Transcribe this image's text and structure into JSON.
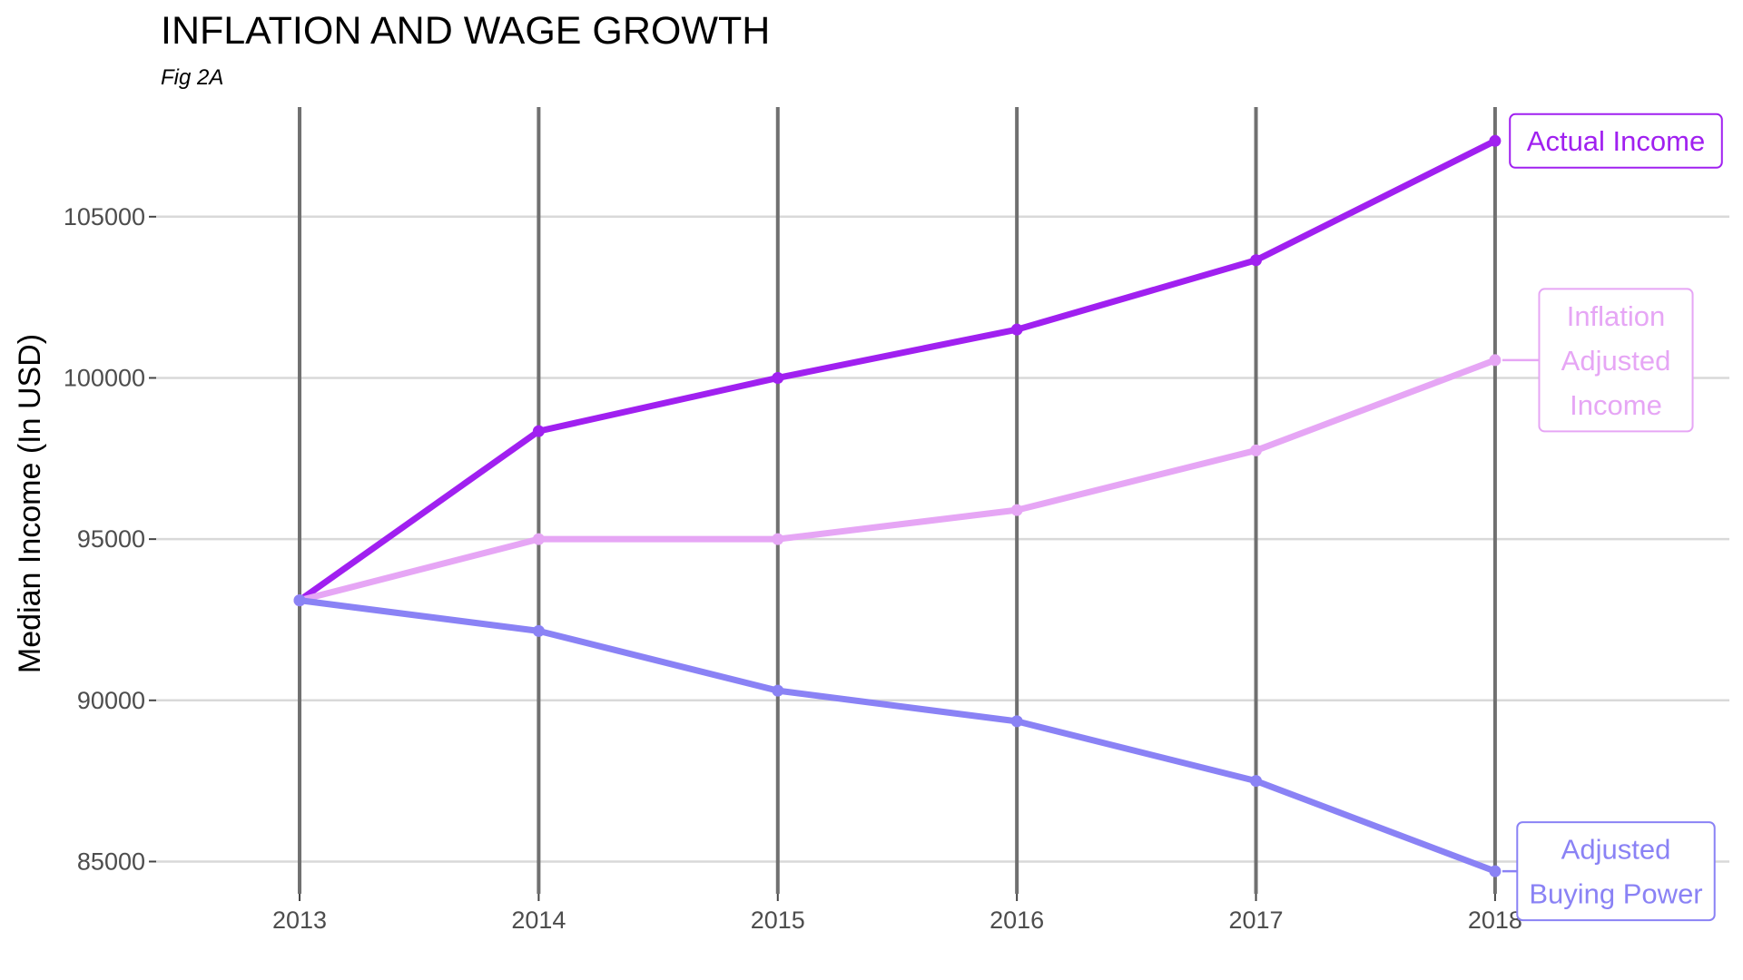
{
  "chart_data": {
    "type": "line",
    "title": "INFLATION AND WAGE GROWTH",
    "subtitle": "Fig 2A",
    "xlabel": "",
    "ylabel": "Median Income (In USD)",
    "x": [
      2013,
      2014,
      2015,
      2016,
      2017,
      2018
    ],
    "x_tick_labels": [
      "2013",
      "2014",
      "2015",
      "2016",
      "2017",
      "2018"
    ],
    "y_ticks": [
      85000,
      90000,
      95000,
      100000,
      105000
    ],
    "y_tick_labels": [
      "85000",
      "90000",
      "95000",
      "100000",
      "105000"
    ],
    "xlim": [
      2012.4,
      2018.98
    ],
    "ylim": [
      84000,
      108400
    ],
    "grid": "horizontal major gridlines; dark vertical reference lines at each year",
    "legend": "direct labels at right end of each series",
    "series": [
      {
        "name": "Actual Income",
        "label_lines": [
          "Actual Income"
        ],
        "color": "#a020f0",
        "values": [
          93100,
          98350,
          100000,
          101500,
          103650,
          107350
        ]
      },
      {
        "name": "Inflation Adjusted Income",
        "label_lines": [
          "Inflation",
          "Adjusted",
          "Income"
        ],
        "color": "#e6a6f5",
        "values": [
          93100,
          95000,
          95000,
          95900,
          97750,
          100550
        ]
      },
      {
        "name": "Adjusted Buying Power",
        "label_lines": [
          "Adjusted",
          "Buying Power"
        ],
        "color": "#8a82f5",
        "values": [
          93100,
          92150,
          90300,
          89350,
          87500,
          84700
        ]
      }
    ]
  }
}
